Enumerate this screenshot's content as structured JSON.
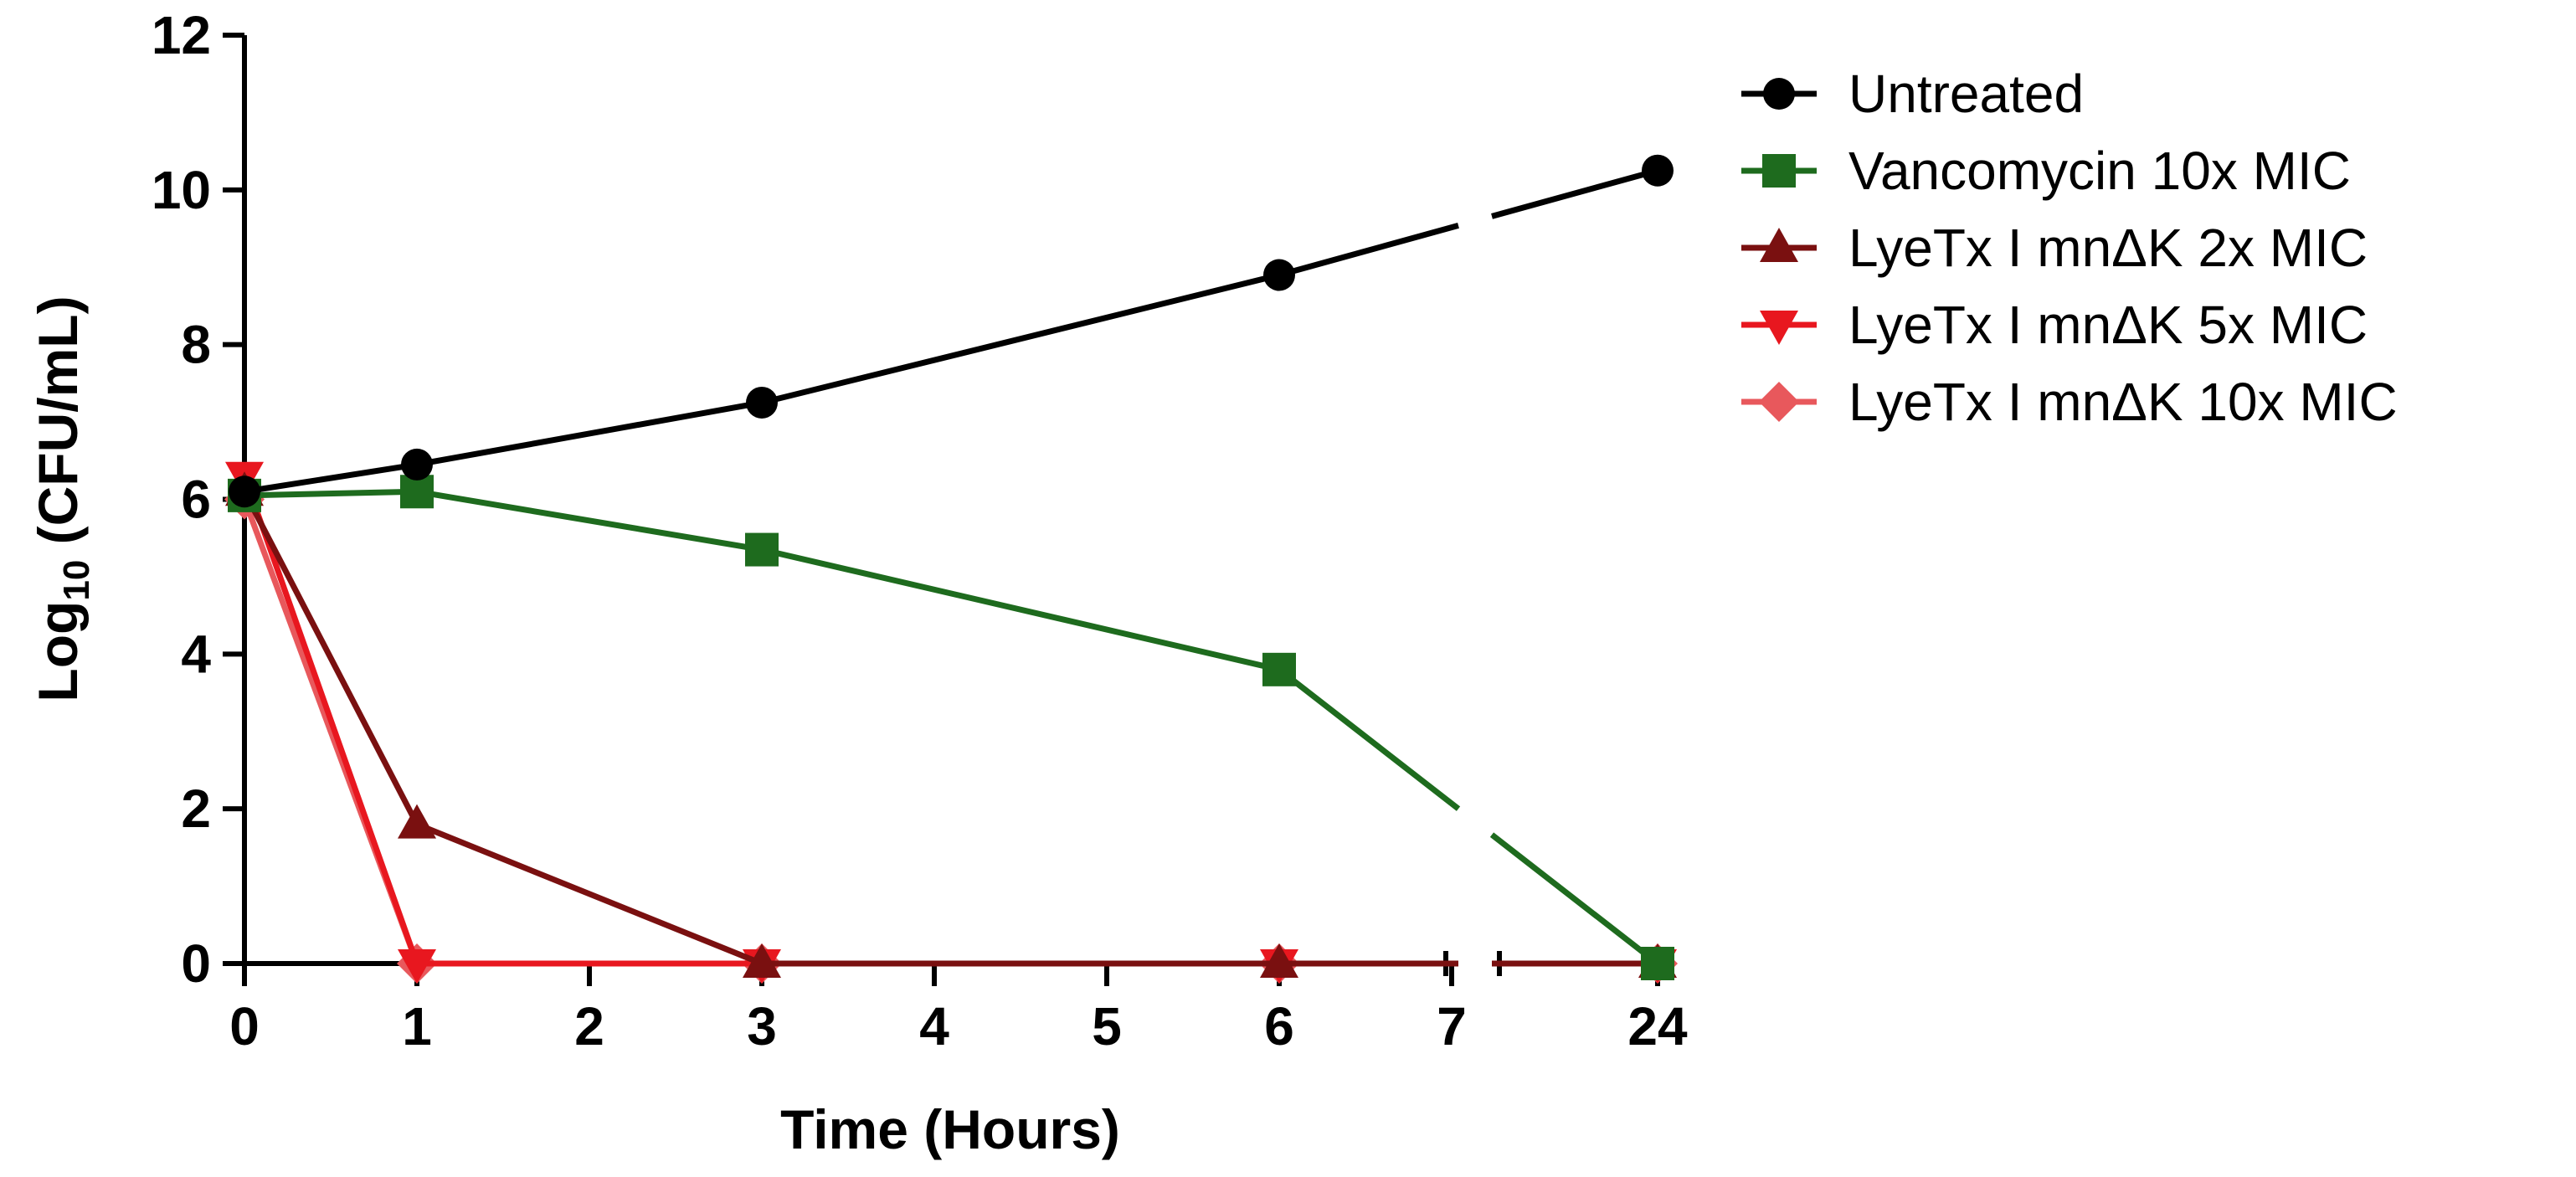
{
  "chart_data": {
    "type": "line",
    "xlabel": "Time (Hours)",
    "ylabel_main": "Log",
    "ylabel_sub": "10",
    "ylabel_rest": " (CFU/mL)",
    "x": [
      0,
      1,
      3,
      6,
      24
    ],
    "x_ticks": [
      "0",
      "1",
      "2",
      "3",
      "4",
      "5",
      "6",
      "7",
      "24"
    ],
    "x_axis_break": "between 7 and 24",
    "ylim": [
      0,
      12
    ],
    "y_ticks": [
      "0",
      "2",
      "4",
      "6",
      "8",
      "10",
      "12"
    ],
    "grid": false,
    "legend_position": "right",
    "series": [
      {
        "name": "Untreated",
        "marker": "circle",
        "color": "#000000",
        "values": [
          6.1,
          6.45,
          7.25,
          8.9,
          10.25
        ]
      },
      {
        "name": "Vancomycin 10x MIC",
        "marker": "square",
        "color": "#1e6b1e",
        "values": [
          6.05,
          6.1,
          5.35,
          3.8,
          0
        ]
      },
      {
        "name": "LyeTx I mnΔK 2x MIC",
        "marker": "triangle-up",
        "color": "#7a1010",
        "values": [
          6.1,
          1.8,
          0,
          0,
          0
        ]
      },
      {
        "name": "LyeTx I mnΔK 5x MIC",
        "marker": "triangle-down",
        "color": "#e8171f",
        "values": [
          6.3,
          0,
          0,
          0,
          0
        ]
      },
      {
        "name": "LyeTx I mnΔK 10x MIC",
        "marker": "diamond",
        "color": "#e8585c",
        "values": [
          6.0,
          0,
          0,
          0,
          0
        ]
      }
    ]
  }
}
